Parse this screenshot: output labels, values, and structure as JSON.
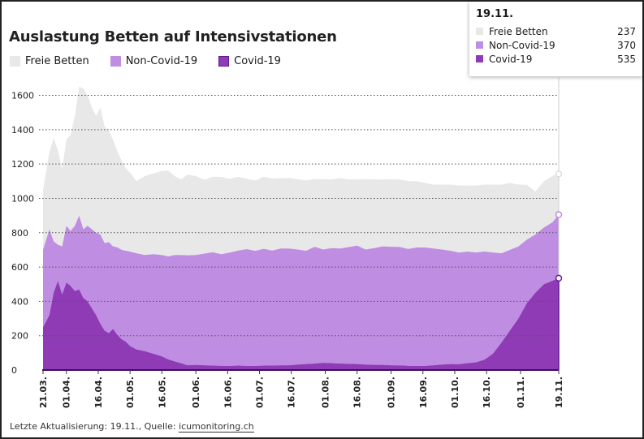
{
  "chart_data": {
    "type": "area",
    "stacked": true,
    "title": "Auslastung Betten auf Intensivstationen",
    "ylim": [
      0,
      1700
    ],
    "yticks": [
      0,
      200,
      400,
      600,
      800,
      1000,
      1200,
      1400,
      1600
    ],
    "grid": "horizontal dotted",
    "legend_position": "top-left",
    "x_tick_labels": [
      "21.03.",
      "01.04.",
      "16.04.",
      "01.05.",
      "16.05.",
      "01.06.",
      "16.06.",
      "01.07.",
      "16.07.",
      "01.08.",
      "16.08.",
      "01.09.",
      "16.09.",
      "01.10.",
      "16.10.",
      "01.11.",
      "19.11."
    ],
    "x_tick_days": [
      0,
      11,
      26,
      41,
      56,
      72,
      87,
      102,
      117,
      133,
      148,
      164,
      179,
      194,
      209,
      225,
      243
    ],
    "series": [
      {
        "name": "Covid-19",
        "color": "#8e3bb5",
        "points": [
          [
            0,
            250
          ],
          [
            3,
            320
          ],
          [
            5,
            450
          ],
          [
            7,
            520
          ],
          [
            9,
            440
          ],
          [
            11,
            510
          ],
          [
            13,
            490
          ],
          [
            15,
            460
          ],
          [
            17,
            470
          ],
          [
            19,
            420
          ],
          [
            21,
            400
          ],
          [
            23,
            360
          ],
          [
            25,
            320
          ],
          [
            27,
            270
          ],
          [
            29,
            230
          ],
          [
            31,
            215
          ],
          [
            33,
            240
          ],
          [
            35,
            205
          ],
          [
            37,
            180
          ],
          [
            39,
            165
          ],
          [
            41,
            140
          ],
          [
            44,
            120
          ],
          [
            48,
            110
          ],
          [
            52,
            95
          ],
          [
            56,
            80
          ],
          [
            59,
            62
          ],
          [
            62,
            50
          ],
          [
            65,
            40
          ],
          [
            68,
            28
          ],
          [
            72,
            30
          ],
          [
            76,
            28
          ],
          [
            80,
            26
          ],
          [
            84,
            25
          ],
          [
            88,
            24
          ],
          [
            92,
            26
          ],
          [
            96,
            24
          ],
          [
            100,
            24
          ],
          [
            104,
            26
          ],
          [
            108,
            26
          ],
          [
            112,
            28
          ],
          [
            116,
            28
          ],
          [
            120,
            32
          ],
          [
            124,
            35
          ],
          [
            128,
            38
          ],
          [
            132,
            42
          ],
          [
            136,
            40
          ],
          [
            140,
            38
          ],
          [
            144,
            36
          ],
          [
            148,
            35
          ],
          [
            152,
            32
          ],
          [
            156,
            30
          ],
          [
            160,
            30
          ],
          [
            164,
            28
          ],
          [
            168,
            27
          ],
          [
            172,
            25
          ],
          [
            176,
            24
          ],
          [
            180,
            24
          ],
          [
            184,
            28
          ],
          [
            188,
            32
          ],
          [
            192,
            35
          ],
          [
            196,
            34
          ],
          [
            200,
            40
          ],
          [
            204,
            45
          ],
          [
            208,
            60
          ],
          [
            212,
            95
          ],
          [
            216,
            160
          ],
          [
            220,
            230
          ],
          [
            224,
            300
          ],
          [
            228,
            390
          ],
          [
            232,
            450
          ],
          [
            236,
            500
          ],
          [
            240,
            520
          ],
          [
            243,
            535
          ]
        ]
      },
      {
        "name": "Non-Covid-19",
        "color": "#bf8ee3",
        "points": [
          [
            0,
            450
          ],
          [
            3,
            500
          ],
          [
            5,
            300
          ],
          [
            7,
            210
          ],
          [
            9,
            280
          ],
          [
            11,
            330
          ],
          [
            13,
            320
          ],
          [
            15,
            380
          ],
          [
            17,
            430
          ],
          [
            19,
            400
          ],
          [
            21,
            440
          ],
          [
            23,
            460
          ],
          [
            25,
            480
          ],
          [
            27,
            520
          ],
          [
            29,
            510
          ],
          [
            31,
            530
          ],
          [
            33,
            480
          ],
          [
            35,
            510
          ],
          [
            37,
            520
          ],
          [
            39,
            530
          ],
          [
            41,
            550
          ],
          [
            44,
            560
          ],
          [
            48,
            560
          ],
          [
            52,
            580
          ],
          [
            56,
            590
          ],
          [
            59,
            600
          ],
          [
            62,
            620
          ],
          [
            65,
            630
          ],
          [
            68,
            640
          ],
          [
            72,
            640
          ],
          [
            76,
            650
          ],
          [
            80,
            660
          ],
          [
            84,
            650
          ],
          [
            88,
            660
          ],
          [
            92,
            670
          ],
          [
            96,
            680
          ],
          [
            100,
            670
          ],
          [
            104,
            680
          ],
          [
            108,
            670
          ],
          [
            112,
            680
          ],
          [
            116,
            680
          ],
          [
            120,
            670
          ],
          [
            124,
            660
          ],
          [
            128,
            680
          ],
          [
            132,
            660
          ],
          [
            136,
            670
          ],
          [
            140,
            670
          ],
          [
            144,
            680
          ],
          [
            148,
            690
          ],
          [
            152,
            670
          ],
          [
            156,
            680
          ],
          [
            160,
            690
          ],
          [
            164,
            690
          ],
          [
            168,
            690
          ],
          [
            172,
            680
          ],
          [
            176,
            690
          ],
          [
            180,
            690
          ],
          [
            184,
            680
          ],
          [
            188,
            670
          ],
          [
            192,
            660
          ],
          [
            196,
            650
          ],
          [
            200,
            650
          ],
          [
            204,
            640
          ],
          [
            208,
            630
          ],
          [
            212,
            590
          ],
          [
            216,
            520
          ],
          [
            220,
            470
          ],
          [
            224,
            420
          ],
          [
            228,
            370
          ],
          [
            232,
            340
          ],
          [
            236,
            330
          ],
          [
            240,
            340
          ],
          [
            243,
            370
          ]
        ]
      },
      {
        "name": "Freie Betten",
        "color": "#e8e8e8",
        "points": [
          [
            0,
            350
          ],
          [
            3,
            450
          ],
          [
            5,
            600
          ],
          [
            7,
            550
          ],
          [
            9,
            450
          ],
          [
            11,
            500
          ],
          [
            13,
            560
          ],
          [
            15,
            640
          ],
          [
            17,
            750
          ],
          [
            19,
            820
          ],
          [
            21,
            760
          ],
          [
            23,
            710
          ],
          [
            25,
            680
          ],
          [
            27,
            740
          ],
          [
            29,
            680
          ],
          [
            31,
            650
          ],
          [
            33,
            620
          ],
          [
            35,
            560
          ],
          [
            37,
            520
          ],
          [
            39,
            480
          ],
          [
            41,
            460
          ],
          [
            44,
            420
          ],
          [
            48,
            460
          ],
          [
            52,
            470
          ],
          [
            56,
            490
          ],
          [
            59,
            500
          ],
          [
            62,
            460
          ],
          [
            65,
            440
          ],
          [
            68,
            470
          ],
          [
            72,
            460
          ],
          [
            76,
            430
          ],
          [
            80,
            440
          ],
          [
            84,
            450
          ],
          [
            88,
            430
          ],
          [
            92,
            430
          ],
          [
            96,
            410
          ],
          [
            100,
            410
          ],
          [
            104,
            420
          ],
          [
            108,
            420
          ],
          [
            112,
            410
          ],
          [
            116,
            410
          ],
          [
            120,
            410
          ],
          [
            124,
            410
          ],
          [
            128,
            395
          ],
          [
            132,
            410
          ],
          [
            136,
            400
          ],
          [
            140,
            410
          ],
          [
            144,
            394
          ],
          [
            148,
            385
          ],
          [
            152,
            410
          ],
          [
            156,
            400
          ],
          [
            160,
            390
          ],
          [
            164,
            393
          ],
          [
            168,
            393
          ],
          [
            172,
            395
          ],
          [
            176,
            386
          ],
          [
            180,
            376
          ],
          [
            184,
            372
          ],
          [
            188,
            378
          ],
          [
            192,
            385
          ],
          [
            196,
            391
          ],
          [
            200,
            385
          ],
          [
            204,
            390
          ],
          [
            208,
            390
          ],
          [
            212,
            395
          ],
          [
            216,
            400
          ],
          [
            220,
            390
          ],
          [
            224,
            360
          ],
          [
            228,
            318
          ],
          [
            232,
            250
          ],
          [
            236,
            270
          ],
          [
            240,
            270
          ],
          [
            243,
            237
          ]
        ]
      }
    ]
  },
  "legend": {
    "items": [
      {
        "label": "Freie Betten",
        "color": "#e8e8e8",
        "border": "#e8e8e8"
      },
      {
        "label": "Non-Covid-19",
        "color": "#bf8ee3",
        "border": "#bf8ee3"
      },
      {
        "label": "Covid-19",
        "color": "#8e3bb5",
        "border": "#5e1a8a"
      }
    ]
  },
  "tooltip": {
    "date": "19.11.",
    "rows": [
      {
        "label": "Freie Betten",
        "value": "237",
        "color": "#e8e8e8"
      },
      {
        "label": "Non-Covid-19",
        "value": "370",
        "color": "#bf8ee3"
      },
      {
        "label": "Covid-19",
        "value": "535",
        "color": "#8e3bb5"
      }
    ]
  },
  "footer": {
    "prefix": "Letzte Aktualisierung: 19.11., Quelle: ",
    "source_link": "icumonitoring.ch"
  }
}
